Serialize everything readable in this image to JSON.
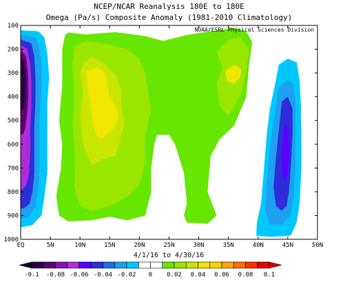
{
  "chart_data": {
    "type": "heatmap",
    "title": "NCEP/NCAR Reanalysis 180E to 180E",
    "subtitle": "Omega (Pa/s) Composite Anomaly (1981-2010 Climatology)",
    "credit": "NOAA/ESRL Physical Sciences Division",
    "xlabel": "4/1/16 to 4/30/16",
    "ylabel": "",
    "x_ticks": [
      "EQ",
      "5N",
      "10N",
      "15N",
      "20N",
      "25N",
      "30N",
      "35N",
      "40N",
      "45N",
      "50N"
    ],
    "xlim": [
      0,
      50
    ],
    "y_ticks": [
      100,
      200,
      300,
      400,
      500,
      600,
      700,
      800,
      900,
      1000
    ],
    "ylim": [
      100,
      1000
    ],
    "y_inverted": true,
    "colorbar": {
      "tick_labels": [
        "-0.1",
        "-0.08",
        "-0.06",
        "-0.04",
        "-0.02",
        "0",
        "0.02",
        "0.04",
        "0.06",
        "0.08",
        "0.1"
      ],
      "colors": [
        "#2b0045",
        "#5e0075",
        "#8a0fb0",
        "#b02cd9",
        "#5a00ff",
        "#2d2dd9",
        "#1e6ee6",
        "#1ea0f0",
        "#00c8ff",
        "#ffffff",
        "#ffffff",
        "#66e600",
        "#99e600",
        "#c8e600",
        "#f0e600",
        "#ffd200",
        "#ffa500",
        "#ff6e00",
        "#ff3200",
        "#e60000"
      ]
    },
    "regions": [
      {
        "level": 0.02,
        "color": "#66e600",
        "points": [
          [
            7.5,
            140
          ],
          [
            8,
            130
          ],
          [
            11,
            138
          ],
          [
            16,
            128
          ],
          [
            21,
            145
          ],
          [
            24,
            165
          ],
          [
            28,
            140
          ],
          [
            32,
            125
          ],
          [
            36,
            110
          ],
          [
            38,
            125
          ],
          [
            39,
            170
          ],
          [
            38.5,
            260
          ],
          [
            38,
            400
          ],
          [
            36,
            520
          ],
          [
            33.5,
            580
          ],
          [
            32,
            650
          ],
          [
            31.5,
            800
          ],
          [
            33,
            900
          ],
          [
            31.5,
            935
          ],
          [
            28,
            930
          ],
          [
            27.5,
            900
          ],
          [
            28,
            850
          ],
          [
            27.5,
            720
          ],
          [
            26,
            600
          ],
          [
            25,
            560
          ],
          [
            23,
            560
          ],
          [
            22.5,
            600
          ],
          [
            22,
            700
          ],
          [
            22,
            800
          ],
          [
            21,
            900
          ],
          [
            18,
            920
          ],
          [
            15,
            905
          ],
          [
            12,
            920
          ],
          [
            8,
            925
          ],
          [
            6.5,
            900
          ],
          [
            6,
            820
          ],
          [
            6.8,
            700
          ],
          [
            7,
            600
          ],
          [
            6.5,
            500
          ],
          [
            7,
            350
          ],
          [
            7,
            200
          ]
        ]
      },
      {
        "level": 0.04,
        "color": "#99e600",
        "points": [
          [
            9,
            190
          ],
          [
            11,
            165
          ],
          [
            14,
            175
          ],
          [
            18,
            200
          ],
          [
            20,
            240
          ],
          [
            21,
            300
          ],
          [
            21.5,
            380
          ],
          [
            22,
            460
          ],
          [
            21,
            560
          ],
          [
            21,
            680
          ],
          [
            20,
            770
          ],
          [
            18,
            820
          ],
          [
            15,
            860
          ],
          [
            12,
            880
          ],
          [
            10,
            860
          ],
          [
            9,
            780
          ],
          [
            9.2,
            660
          ],
          [
            8.7,
            520
          ],
          [
            9,
            400
          ],
          [
            8.7,
            260
          ]
        ]
      },
      {
        "level": 0.04,
        "color": "#99e600",
        "points": [
          [
            33,
            210
          ],
          [
            35,
            160
          ],
          [
            37,
            150
          ],
          [
            38.5,
            200
          ],
          [
            38,
            300
          ],
          [
            37,
            400
          ],
          [
            35,
            480
          ],
          [
            33.5,
            440
          ],
          [
            33,
            340
          ],
          [
            34,
            280
          ]
        ]
      },
      {
        "level": 0.06,
        "color": "#c8e600",
        "points": [
          [
            10.5,
            260
          ],
          [
            12,
            230
          ],
          [
            14,
            260
          ],
          [
            16,
            310
          ],
          [
            17,
            370
          ],
          [
            17,
            440
          ],
          [
            17.5,
            520
          ],
          [
            16.5,
            600
          ],
          [
            16,
            650
          ],
          [
            14,
            660
          ],
          [
            12,
            690
          ],
          [
            10.5,
            600
          ],
          [
            10,
            480
          ],
          [
            10.5,
            380
          ],
          [
            10,
            300
          ]
        ]
      },
      {
        "level": 0.08,
        "color": "#f0e600",
        "points": [
          [
            11,
            290
          ],
          [
            13,
            275
          ],
          [
            14.2,
            300
          ],
          [
            14.6,
            350
          ],
          [
            15,
            400
          ],
          [
            16,
            440
          ],
          [
            16.5,
            480
          ],
          [
            15.8,
            530
          ],
          [
            14.6,
            560
          ],
          [
            13.4,
            580
          ],
          [
            12.4,
            540
          ],
          [
            12,
            480
          ],
          [
            11.6,
            410
          ],
          [
            11.2,
            340
          ]
        ]
      },
      {
        "level": 0.08,
        "color": "#f0e600",
        "points": [
          [
            34.5,
            290
          ],
          [
            36,
            265
          ],
          [
            37.2,
            285
          ],
          [
            37,
            320
          ],
          [
            36,
            345
          ],
          [
            34.8,
            335
          ]
        ]
      },
      {
        "level": -0.02,
        "color": "#00c8ff",
        "points": [
          [
            0,
            120
          ],
          [
            3,
            125
          ],
          [
            4,
            150
          ],
          [
            4.5,
            220
          ],
          [
            4.8,
            320
          ],
          [
            4.5,
            420
          ],
          [
            4.5,
            520
          ],
          [
            4.5,
            620
          ],
          [
            4.5,
            720
          ],
          [
            4,
            820
          ],
          [
            3.5,
            900
          ],
          [
            2,
            940
          ],
          [
            0,
            950
          ]
        ]
      },
      {
        "level": -0.04,
        "color": "#1ea0f0",
        "points": [
          [
            0,
            140
          ],
          [
            2.5,
            150
          ],
          [
            3.2,
            200
          ],
          [
            3.5,
            280
          ],
          [
            3.5,
            380
          ],
          [
            3.2,
            480
          ],
          [
            3.2,
            580
          ],
          [
            3.2,
            680
          ],
          [
            3,
            780
          ],
          [
            2.5,
            860
          ],
          [
            1.5,
            905
          ],
          [
            0,
            915
          ]
        ]
      },
      {
        "level": -0.06,
        "color": "#2d2dd9",
        "points": [
          [
            0,
            160
          ],
          [
            1.8,
            175
          ],
          [
            2.3,
            230
          ],
          [
            2.5,
            320
          ],
          [
            2.5,
            420
          ],
          [
            2.3,
            520
          ],
          [
            2.3,
            620
          ],
          [
            2.3,
            720
          ],
          [
            2,
            800
          ],
          [
            1.5,
            850
          ],
          [
            0.5,
            870
          ],
          [
            0,
            870
          ]
        ]
      },
      {
        "level": -0.08,
        "color": "#b02cd9",
        "points": [
          [
            0,
            180
          ],
          [
            1.1,
            200
          ],
          [
            1.6,
            260
          ],
          [
            1.8,
            340
          ],
          [
            1.8,
            440
          ],
          [
            1.6,
            540
          ],
          [
            1.6,
            640
          ],
          [
            1.4,
            720
          ],
          [
            1,
            770
          ],
          [
            0.4,
            790
          ],
          [
            0,
            790
          ]
        ]
      },
      {
        "level": -0.1,
        "color": "#5e0075",
        "points": [
          [
            0,
            200
          ],
          [
            0.9,
            230
          ],
          [
            1.2,
            290
          ],
          [
            1.3,
            380
          ],
          [
            1.1,
            470
          ],
          [
            0.8,
            530
          ],
          [
            0.4,
            560
          ],
          [
            0,
            560
          ]
        ]
      },
      {
        "level": -0.12,
        "color": "#2b0045",
        "points": [
          [
            0,
            230
          ],
          [
            0.6,
            260
          ],
          [
            0.9,
            320
          ],
          [
            0.8,
            400
          ],
          [
            0.5,
            450
          ],
          [
            0,
            460
          ]
        ]
      },
      {
        "level": -0.02,
        "color": "#00c8ff",
        "points": [
          [
            43,
            330
          ],
          [
            43.5,
            265
          ],
          [
            45,
            240
          ],
          [
            46.5,
            255
          ],
          [
            47,
            330
          ],
          [
            47.2,
            430
          ],
          [
            47.3,
            550
          ],
          [
            47.3,
            700
          ],
          [
            47,
            850
          ],
          [
            46.5,
            930
          ],
          [
            45.5,
            985
          ],
          [
            42,
            990
          ],
          [
            39.7,
            985
          ],
          [
            39.8,
            930
          ],
          [
            40.5,
            850
          ],
          [
            41,
            700
          ],
          [
            41.5,
            550
          ],
          [
            42,
            450
          ]
        ]
      },
      {
        "level": -0.04,
        "color": "#1ea0f0",
        "points": [
          [
            43.5,
            360
          ],
          [
            45,
            330
          ],
          [
            46,
            350
          ],
          [
            46.3,
            430
          ],
          [
            46.3,
            550
          ],
          [
            46.3,
            700
          ],
          [
            46,
            820
          ],
          [
            45.5,
            900
          ],
          [
            44,
            940
          ],
          [
            42,
            940
          ],
          [
            41.2,
            880
          ],
          [
            41.5,
            760
          ],
          [
            42,
            620
          ],
          [
            42.5,
            520
          ],
          [
            43,
            440
          ]
        ]
      },
      {
        "level": -0.06,
        "color": "#2d2dd9",
        "points": [
          [
            44,
            420
          ],
          [
            45,
            400
          ],
          [
            45.8,
            450
          ],
          [
            45.8,
            560
          ],
          [
            45.5,
            700
          ],
          [
            45.2,
            800
          ],
          [
            44.8,
            860
          ],
          [
            44,
            880
          ],
          [
            43,
            860
          ],
          [
            42.6,
            780
          ],
          [
            43,
            660
          ],
          [
            43.5,
            540
          ]
        ]
      },
      {
        "level": -0.08,
        "color": "#5a00ff",
        "points": [
          [
            44.4,
            520
          ],
          [
            45.1,
            520
          ],
          [
            45.3,
            620
          ],
          [
            45,
            720
          ],
          [
            44.5,
            760
          ],
          [
            44,
            720
          ],
          [
            44,
            620
          ]
        ]
      }
    ]
  }
}
